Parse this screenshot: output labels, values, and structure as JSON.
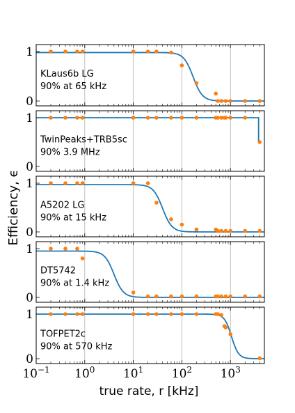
{
  "figure": {
    "ylabel": "Efficiency, ϵ",
    "xlabel": "true rate, r [kHz]",
    "xscale": "log",
    "xlim": [
      0.1,
      5000
    ],
    "ylim": [
      0,
      1
    ],
    "xticks": [
      {
        "value": 0.1,
        "base": "10",
        "exp": "−1"
      },
      {
        "value": 1,
        "base": "10",
        "exp": "0"
      },
      {
        "value": 10,
        "base": "10",
        "exp": "1"
      },
      {
        "value": 100,
        "base": "10",
        "exp": "2"
      },
      {
        "value": 1000,
        "base": "10",
        "exp": "3"
      }
    ],
    "yticks": [
      "0",
      "1"
    ],
    "grid": "vertical at decades",
    "colors": {
      "curve": "#1f77b4",
      "points": "#ff7f0e",
      "grid": "#b0b0b0"
    }
  },
  "chart_data": [
    {
      "type": "scatter",
      "label_name": "KLaus6b LG",
      "label_spec": "90% at 65 kHz",
      "xlim": [
        0.1,
        5000
      ],
      "ylim": [
        0,
        1
      ],
      "curve": {
        "plateau": 0.98,
        "half_rate_khz": 170,
        "steepness": 4.5
      },
      "points": [
        [
          0.2,
          1.0
        ],
        [
          0.4,
          1.0
        ],
        [
          0.7,
          1.0
        ],
        [
          0.9,
          1.0
        ],
        [
          10,
          1.0
        ],
        [
          20,
          1.0
        ],
        [
          30,
          1.0
        ],
        [
          60,
          0.98
        ],
        [
          100,
          0.72
        ],
        [
          200,
          0.36
        ],
        [
          500,
          0.15
        ],
        [
          550,
          0.0
        ],
        [
          650,
          0.0
        ],
        [
          800,
          0.0
        ],
        [
          1000,
          0.0
        ],
        [
          2000,
          0.0
        ],
        [
          4000,
          0.0
        ]
      ]
    },
    {
      "type": "scatter",
      "label_name": "TwinPeaks+TRB5sc",
      "label_spec": "90% 3.9 MHz",
      "xlim": [
        0.1,
        5000
      ],
      "ylim": [
        0,
        1
      ],
      "curve": {
        "plateau": 1.0,
        "cutoff_khz": 3800
      },
      "points": [
        [
          0.2,
          1.0
        ],
        [
          0.4,
          1.0
        ],
        [
          0.7,
          1.0
        ],
        [
          0.9,
          1.0
        ],
        [
          10,
          1.0
        ],
        [
          20,
          1.0
        ],
        [
          30,
          1.0
        ],
        [
          60,
          1.0
        ],
        [
          100,
          1.0
        ],
        [
          200,
          1.0
        ],
        [
          500,
          1.0
        ],
        [
          550,
          1.0
        ],
        [
          650,
          1.0
        ],
        [
          750,
          1.0
        ],
        [
          800,
          1.0
        ],
        [
          1000,
          1.0
        ],
        [
          2000,
          1.0
        ],
        [
          4000,
          0.5
        ]
      ]
    },
    {
      "type": "scatter",
      "label_name": "A5202 LG",
      "label_spec": "90% at 15 kHz",
      "xlim": [
        0.1,
        5000
      ],
      "ylim": [
        0,
        1
      ],
      "curve": {
        "plateau": 0.97,
        "half_rate_khz": 40,
        "steepness": 4.5
      },
      "points": [
        [
          0.2,
          1.0
        ],
        [
          0.4,
          1.0
        ],
        [
          0.7,
          1.0
        ],
        [
          0.9,
          1.0
        ],
        [
          10,
          1.0
        ],
        [
          20,
          1.0
        ],
        [
          30,
          0.6
        ],
        [
          60,
          0.26
        ],
        [
          100,
          0.15
        ],
        [
          200,
          0.05
        ],
        [
          500,
          0.05
        ],
        [
          550,
          0.02
        ],
        [
          650,
          0.02
        ],
        [
          800,
          0.02
        ],
        [
          1000,
          0.02
        ],
        [
          2000,
          0.02
        ],
        [
          4000,
          0.02
        ]
      ]
    },
    {
      "type": "scatter",
      "label_name": "DT5742",
      "label_spec": "90% at 1.4 kHz",
      "xlim": [
        0.1,
        5000
      ],
      "ylim": [
        0,
        1
      ],
      "curve": {
        "plateau": 0.95,
        "half_rate_khz": 4,
        "steepness": 4.5
      },
      "points": [
        [
          0.2,
          1.0
        ],
        [
          0.4,
          1.0
        ],
        [
          0.7,
          1.0
        ],
        [
          0.9,
          0.8
        ],
        [
          10,
          0.1
        ],
        [
          20,
          0.02
        ],
        [
          30,
          0.02
        ],
        [
          60,
          0.02
        ],
        [
          100,
          0.02
        ],
        [
          200,
          0.02
        ],
        [
          500,
          0.02
        ],
        [
          550,
          0.02
        ],
        [
          650,
          0.02
        ],
        [
          800,
          0.02
        ],
        [
          1000,
          0.02
        ],
        [
          2000,
          0.02
        ],
        [
          4000,
          0.02
        ]
      ]
    },
    {
      "type": "scatter",
      "label_name": "TOFPET2c",
      "label_spec": "90% at 570 kHz",
      "xlim": [
        0.1,
        5000
      ],
      "ylim": [
        0,
        1
      ],
      "curve": {
        "plateau": 1.0,
        "half_rate_khz": 1050,
        "steepness": 6
      },
      "points": [
        [
          0.2,
          1.0
        ],
        [
          0.4,
          1.0
        ],
        [
          0.7,
          1.0
        ],
        [
          0.9,
          1.0
        ],
        [
          10,
          1.0
        ],
        [
          20,
          1.0
        ],
        [
          30,
          1.0
        ],
        [
          60,
          1.0
        ],
        [
          100,
          1.0
        ],
        [
          200,
          1.0
        ],
        [
          500,
          1.0
        ],
        [
          550,
          1.0
        ],
        [
          650,
          0.98
        ],
        [
          750,
          0.73
        ],
        [
          800,
          0.7
        ],
        [
          1000,
          0.55
        ],
        [
          4000,
          0.01
        ]
      ]
    }
  ]
}
